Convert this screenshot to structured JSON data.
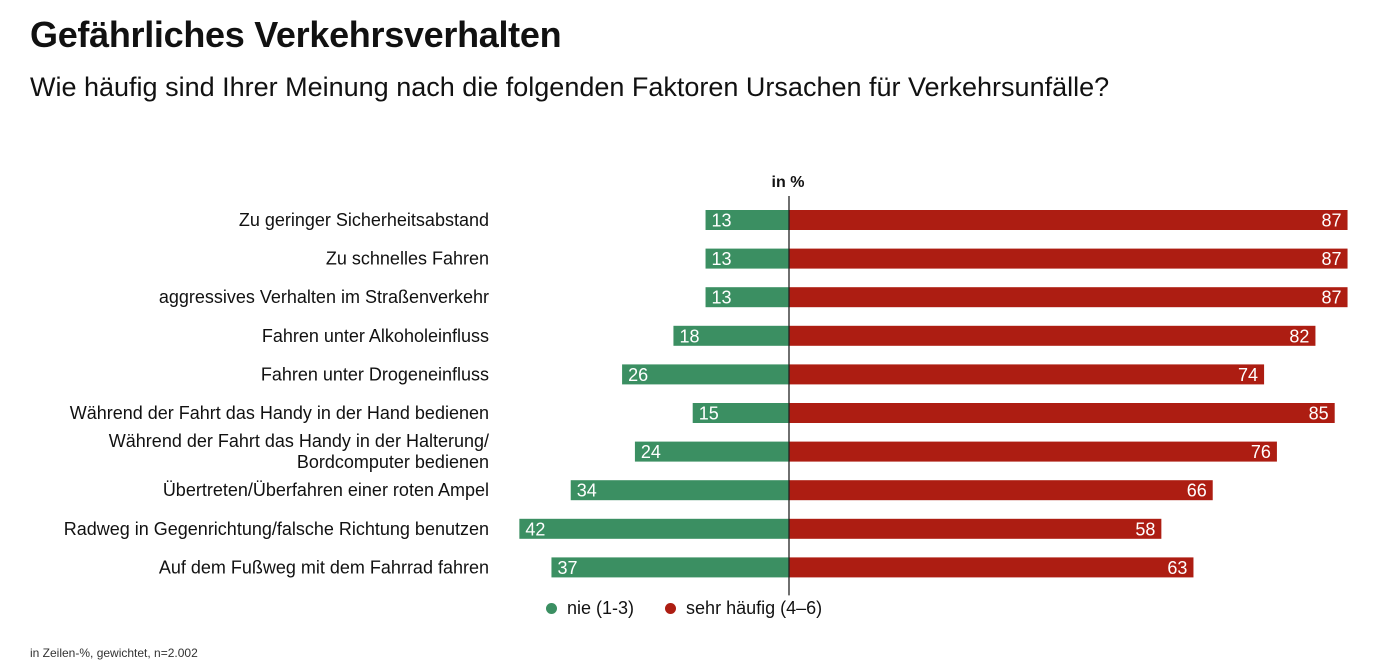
{
  "header": {
    "title": "Gefährliches Verkehrsverhalten",
    "subtitle": "Wie häufig sind Ihrer Meinung nach die folgenden Faktoren Ursachen für Verkehrsunfälle?"
  },
  "footnote": "in Zeilen-%, gewichtet, n=2.002",
  "colors": {
    "green": "#3b8f62",
    "red": "#ad1d12"
  },
  "chart_data": {
    "type": "bar",
    "orientation": "horizontal-diverging",
    "unit_label": "in %",
    "categories": [
      [
        "Zu geringer Sicherheitsabstand"
      ],
      [
        "Zu schnelles Fahren"
      ],
      [
        "aggressives Verhalten im Straßenverkehr"
      ],
      [
        "Fahren unter Alkoholeinfluss"
      ],
      [
        "Fahren unter Drogeneinfluss"
      ],
      [
        "Während der Fahrt das Handy in der Hand bedienen"
      ],
      [
        "Während der Fahrt das Handy in der Halterung/",
        "Bordcomputer bedienen"
      ],
      [
        "Übertreten/Überfahren einer roten Ampel"
      ],
      [
        "Radweg in Gegenrichtung/falsche Richtung benutzen"
      ],
      [
        "Auf dem Fußweg mit dem Fahrrad fahren"
      ]
    ],
    "series": [
      {
        "name": "nie (1-3)",
        "color": "#3b8f62",
        "values": [
          13,
          13,
          13,
          18,
          26,
          15,
          24,
          34,
          42,
          37
        ]
      },
      {
        "name": "sehr häufig (4–6)",
        "color": "#ad1d12",
        "values": [
          87,
          87,
          87,
          82,
          74,
          85,
          76,
          66,
          58,
          63
        ]
      }
    ],
    "legend_position": "bottom",
    "grid": false
  }
}
